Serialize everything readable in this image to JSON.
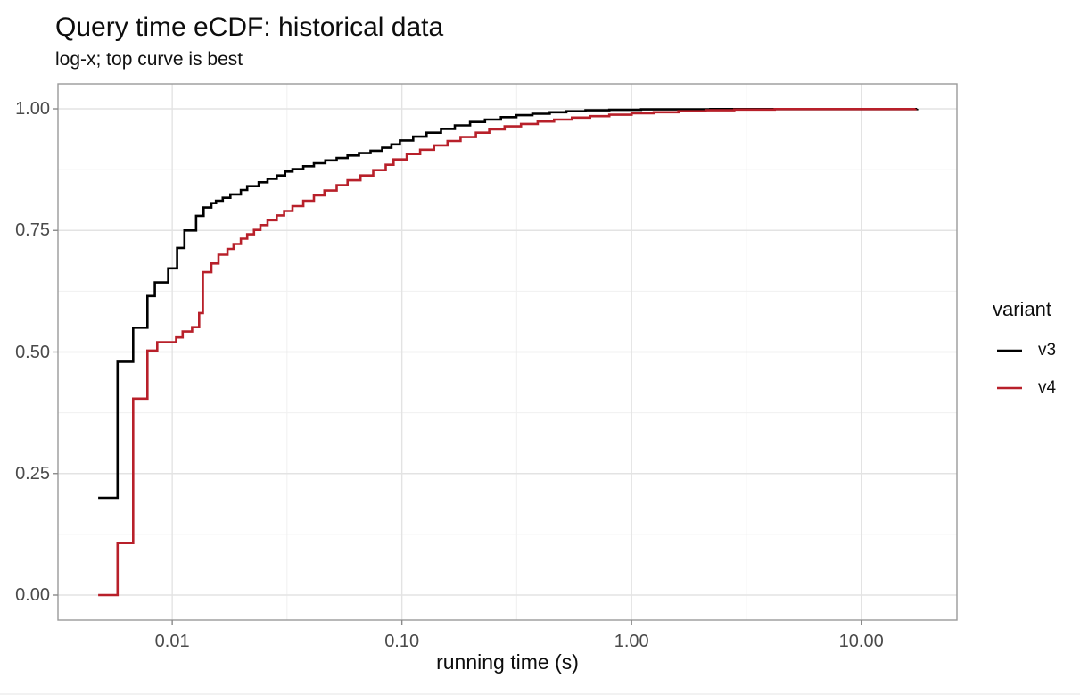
{
  "title": "Query time eCDF: historical data",
  "subtitle": "log-x; top curve is best",
  "chart_data": {
    "type": "line",
    "line_style": "ecdf_step",
    "title": "Query time eCDF: historical data",
    "subtitle": "log-x; top curve is best",
    "xlabel": "running time (s)",
    "ylabel": "",
    "x_scale": "log10",
    "xlim": [
      0.00318,
      26.1
    ],
    "ylim": [
      -0.0514,
      1.0514
    ],
    "grid": true,
    "x_major_ticks": [
      {
        "value": 0.01,
        "label": "0.01"
      },
      {
        "value": 0.1,
        "label": "0.10"
      },
      {
        "value": 1,
        "label": "1.00"
      },
      {
        "value": 10,
        "label": "10.00"
      }
    ],
    "y_major_ticks": [
      {
        "value": 0,
        "label": "0.00"
      },
      {
        "value": 0.25,
        "label": "0.25"
      },
      {
        "value": 0.5,
        "label": "0.50"
      },
      {
        "value": 0.75,
        "label": "0.75"
      },
      {
        "value": 1,
        "label": "1.00"
      }
    ],
    "x_minor_gridlines": [
      0.0316,
      0.316,
      3.16
    ],
    "y_minor_gridlines": [
      0.125,
      0.375,
      0.625,
      0.875
    ],
    "legend": {
      "title": "variant",
      "position": "right",
      "items": [
        {
          "label": "v3",
          "color": "#000000"
        },
        {
          "label": "v4",
          "color": "#B8202A"
        }
      ]
    },
    "series": [
      {
        "name": "v3",
        "color": "#000000",
        "points": [
          [
            0.00476,
            0.2
          ],
          [
            0.00578,
            0.48
          ],
          [
            0.00676,
            0.55
          ],
          [
            0.0078,
            0.615
          ],
          [
            0.0084,
            0.643
          ],
          [
            0.0096,
            0.672
          ],
          [
            0.0105,
            0.714
          ],
          [
            0.0113,
            0.75
          ],
          [
            0.0127,
            0.78
          ],
          [
            0.0137,
            0.797
          ],
          [
            0.0148,
            0.806
          ],
          [
            0.0155,
            0.811
          ],
          [
            0.0166,
            0.817
          ],
          [
            0.0179,
            0.824
          ],
          [
            0.0199,
            0.833
          ],
          [
            0.0212,
            0.841
          ],
          [
            0.0238,
            0.849
          ],
          [
            0.026,
            0.856
          ],
          [
            0.0285,
            0.863
          ],
          [
            0.031,
            0.871
          ],
          [
            0.0334,
            0.876
          ],
          [
            0.0372,
            0.882
          ],
          [
            0.0414,
            0.888
          ],
          [
            0.0464,
            0.894
          ],
          [
            0.052,
            0.899
          ],
          [
            0.058,
            0.904
          ],
          [
            0.065,
            0.909
          ],
          [
            0.073,
            0.914
          ],
          [
            0.082,
            0.92
          ],
          [
            0.09,
            0.927
          ],
          [
            0.098,
            0.935
          ],
          [
            0.112,
            0.943
          ],
          [
            0.128,
            0.951
          ],
          [
            0.148,
            0.959
          ],
          [
            0.17,
            0.966
          ],
          [
            0.198,
            0.973
          ],
          [
            0.23,
            0.978
          ],
          [
            0.27,
            0.983
          ],
          [
            0.315,
            0.987
          ],
          [
            0.37,
            0.99
          ],
          [
            0.44,
            0.993
          ],
          [
            0.52,
            0.995
          ],
          [
            0.63,
            0.997
          ],
          [
            0.8,
            0.998
          ],
          [
            1.1,
            0.999
          ],
          [
            2.2,
            0.9995
          ],
          [
            17.5,
            1.0
          ]
        ]
      },
      {
        "name": "v4",
        "color": "#B8202A",
        "points": [
          [
            0.00476,
            0.0
          ],
          [
            0.00578,
            0.107
          ],
          [
            0.00676,
            0.404
          ],
          [
            0.0078,
            0.503
          ],
          [
            0.0086,
            0.52
          ],
          [
            0.0104,
            0.53
          ],
          [
            0.0111,
            0.542
          ],
          [
            0.0122,
            0.551
          ],
          [
            0.0131,
            0.58
          ],
          [
            0.0136,
            0.664
          ],
          [
            0.0148,
            0.682
          ],
          [
            0.0159,
            0.7
          ],
          [
            0.0174,
            0.712
          ],
          [
            0.0185,
            0.722
          ],
          [
            0.0199,
            0.733
          ],
          [
            0.0212,
            0.742
          ],
          [
            0.0227,
            0.751
          ],
          [
            0.0242,
            0.761
          ],
          [
            0.026,
            0.771
          ],
          [
            0.0285,
            0.781
          ],
          [
            0.0307,
            0.79
          ],
          [
            0.0334,
            0.8
          ],
          [
            0.0372,
            0.811
          ],
          [
            0.0414,
            0.822
          ],
          [
            0.046,
            0.832
          ],
          [
            0.052,
            0.843
          ],
          [
            0.058,
            0.853
          ],
          [
            0.066,
            0.863
          ],
          [
            0.075,
            0.874
          ],
          [
            0.085,
            0.885
          ],
          [
            0.092,
            0.896
          ],
          [
            0.105,
            0.907
          ],
          [
            0.12,
            0.916
          ],
          [
            0.138,
            0.925
          ],
          [
            0.158,
            0.934
          ],
          [
            0.18,
            0.942
          ],
          [
            0.21,
            0.951
          ],
          [
            0.24,
            0.958
          ],
          [
            0.28,
            0.964
          ],
          [
            0.33,
            0.969
          ],
          [
            0.39,
            0.974
          ],
          [
            0.46,
            0.978
          ],
          [
            0.55,
            0.982
          ],
          [
            0.66,
            0.985
          ],
          [
            0.8,
            0.988
          ],
          [
            1.0,
            0.991
          ],
          [
            1.25,
            0.993
          ],
          [
            1.6,
            0.995
          ],
          [
            2.1,
            0.997
          ],
          [
            2.8,
            0.9985
          ],
          [
            4.2,
            0.9995
          ],
          [
            17.2,
            1.0
          ]
        ]
      }
    ]
  },
  "colors": {
    "background": "#FFFFFF",
    "panel_border": "#9A9A9A",
    "grid_major": "#E3E3E3",
    "grid_minor": "#F0F0F0",
    "tick_mark": "#8A8A8A",
    "tick_label": "#4A4A4A",
    "text": "#0D0D0D"
  }
}
